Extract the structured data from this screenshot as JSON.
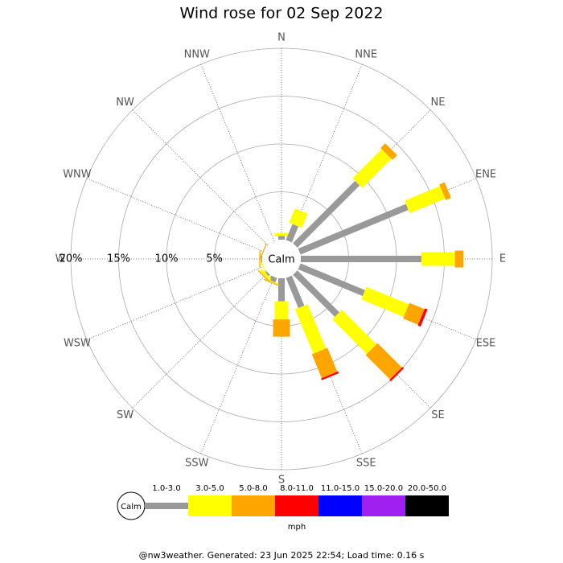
{
  "chart_data": {
    "type": "wind_rose",
    "title": "Wind rose for 02 Sep 2022",
    "directions": [
      "N",
      "NNE",
      "NE",
      "ENE",
      "E",
      "ESE",
      "SE",
      "SSE",
      "S",
      "SSW",
      "SW",
      "WSW",
      "W",
      "WNW",
      "NW",
      "NNW"
    ],
    "calm_label": "Calm",
    "rlim": [
      0,
      20
    ],
    "rticks": [
      {
        "value": 5,
        "label": "5%"
      },
      {
        "value": 10,
        "label": "10%"
      },
      {
        "value": 15,
        "label": "15%"
      },
      {
        "value": 20,
        "label": "20%"
      }
    ],
    "legend_title": "mph",
    "series": [
      {
        "name": "1.0-3.0",
        "color": "#999999",
        "values": [
          0.4,
          1.8,
          9.2,
          12.2,
          12.6,
          7.3,
          6.2,
          3.4,
          2.4,
          0.5,
          0.2,
          0,
          0.1,
          0,
          0,
          0
        ]
      },
      {
        "name": "3.0-5.0",
        "color": "#ffff00",
        "values": [
          0.3,
          1.6,
          4.3,
          4.0,
          3.5,
          4.8,
          5.1,
          5.0,
          1.9,
          0.1,
          0.3,
          0.1,
          0.1,
          0,
          0,
          0
        ]
      },
      {
        "name": "5.0-8.0",
        "color": "#ffa500",
        "values": [
          0,
          0,
          0.7,
          0.6,
          0.9,
          1.7,
          3.6,
          2.7,
          1.8,
          0.1,
          0.1,
          0,
          0.1,
          0.1,
          0,
          0
        ]
      },
      {
        "name": "8.0-11.0",
        "color": "#ff0000",
        "values": [
          0,
          0,
          0,
          0,
          0,
          0.3,
          0.2,
          0.2,
          0,
          0,
          0,
          0,
          0,
          0,
          0,
          0
        ]
      },
      {
        "name": "11.0-15.0",
        "color": "#0000ff",
        "values": [
          0,
          0,
          0,
          0,
          0,
          0,
          0,
          0,
          0,
          0,
          0,
          0,
          0,
          0,
          0,
          0
        ]
      },
      {
        "name": "15.0-20.0",
        "color": "#a020f0",
        "values": [
          0,
          0,
          0,
          0,
          0,
          0,
          0,
          0,
          0,
          0,
          0,
          0,
          0,
          0,
          0,
          0
        ]
      },
      {
        "name": "20.0-50.0",
        "color": "#000000",
        "values": [
          0,
          0,
          0,
          0,
          0,
          0,
          0,
          0,
          0,
          0,
          0,
          0,
          0,
          0,
          0,
          0
        ]
      }
    ],
    "footer": "@nw3weather. Generated: 23 Jun 2025 22:54; Load time: 0.16 s"
  }
}
